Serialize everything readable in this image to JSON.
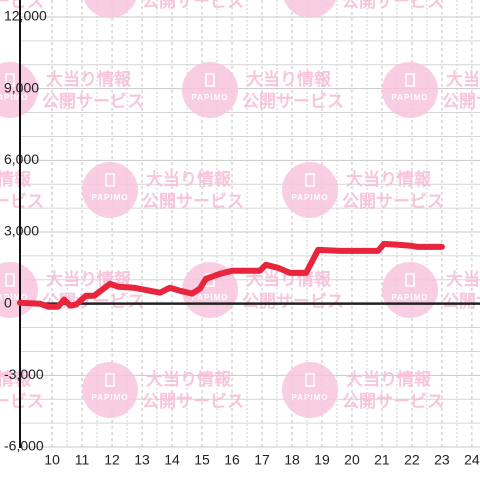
{
  "chart_data": {
    "type": "line",
    "x": [
      8.93,
      9.6,
      9.87,
      10.2,
      10.4,
      10.6,
      10.8,
      11.13,
      11.4,
      11.93,
      12.2,
      12.73,
      13.27,
      13.6,
      13.93,
      14.27,
      14.67,
      14.93,
      15.13,
      15.6,
      16.0,
      16.27,
      16.93,
      17.13,
      17.53,
      17.93,
      18.47,
      18.87,
      19.6,
      20.87,
      21.07,
      21.6,
      22.0,
      22.2,
      23.0
    ],
    "values": [
      40,
      0,
      -125,
      -125,
      170,
      -80,
      -40,
      330,
      330,
      830,
      710,
      670,
      540,
      460,
      670,
      540,
      420,
      625,
      1040,
      1250,
      1375,
      1375,
      1375,
      1625,
      1500,
      1290,
      1290,
      2250,
      2210,
      2210,
      2500,
      2460,
      2420,
      2375,
      2375
    ],
    "color": "#e8253c",
    "xlim": [
      8.93,
      24.27
    ],
    "xticks": [
      10,
      11,
      12,
      13,
      14,
      15,
      16,
      17,
      18,
      19,
      20,
      21,
      22,
      23,
      24
    ],
    "ylim": [
      -6000,
      12000
    ],
    "yticks": [
      {
        "value": -6000,
        "label": "-6,000"
      },
      {
        "value": -3000,
        "label": "-3,000"
      },
      0,
      {
        "value": 3000,
        "label": "3,000"
      },
      {
        "value": 6000,
        "label": "6,000"
      },
      {
        "value": 9000,
        "label": "9,000"
      },
      {
        "value": 12000,
        "label": "12,000"
      }
    ],
    "grid": true
  },
  "watermark": {
    "logo": "PAPIMO",
    "line1": "大当り情報",
    "line2": "公開サービス"
  }
}
